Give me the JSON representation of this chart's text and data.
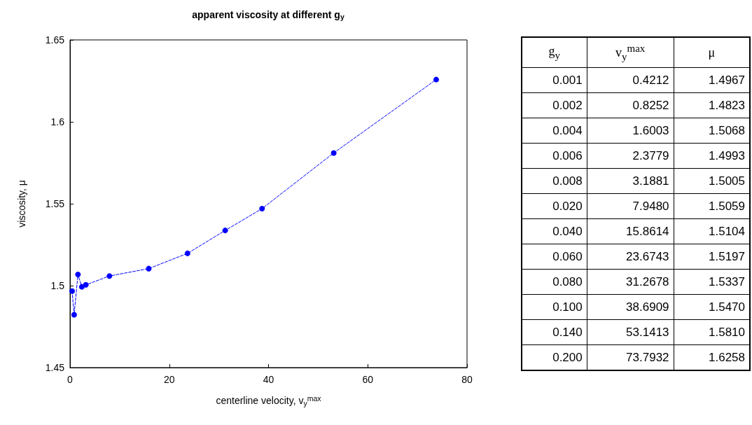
{
  "chart_data": [
    {
      "type": "line",
      "title": "apparent viscosity at different g$_{y}$",
      "xlabel": "centerline velocity, v$_{y}$$^{max}$",
      "ylabel": "viscosity, μ",
      "x": [
        0.4212,
        0.8252,
        1.6003,
        2.3779,
        3.1881,
        7.948,
        15.8614,
        23.6743,
        31.2678,
        38.6909,
        53.1413,
        73.7932
      ],
      "values": [
        1.4967,
        1.4823,
        1.5068,
        1.4993,
        1.5005,
        1.5059,
        1.5104,
        1.5197,
        1.5337,
        1.547,
        1.581,
        1.6258
      ],
      "color": "#0000ff",
      "marker": "circle",
      "line_style": "dashed",
      "grid": false,
      "xlim": [
        0,
        80
      ],
      "xticks": [
        0,
        20,
        40,
        60,
        80
      ],
      "ylim": [
        1.45,
        1.65
      ],
      "yticks": [
        1.45,
        1.5,
        1.55,
        1.6,
        1.65
      ]
    },
    {
      "type": "other",
      "categories": [
        "g$_{y}$",
        "v$_{y}$$^{max}$",
        "μ"
      ],
      "cell_labels": [
        [
          "0.001",
          "0.4212",
          "1.4967"
        ],
        [
          "0.002",
          "0.8252",
          "1.4823"
        ],
        [
          "0.004",
          "1.6003",
          "1.5068"
        ],
        [
          "0.006",
          "2.3779",
          "1.4993"
        ],
        [
          "0.008",
          "3.1881",
          "1.5005"
        ],
        [
          "0.020",
          "7.9480",
          "1.5059"
        ],
        [
          "0.040",
          "15.8614",
          "1.5104"
        ],
        [
          "0.060",
          "23.6743",
          "1.5197"
        ],
        [
          "0.080",
          "31.2678",
          "1.5337"
        ],
        [
          "0.100",
          "38.6909",
          "1.5470"
        ],
        [
          "0.140",
          "53.1413",
          "1.5810"
        ],
        [
          "0.200",
          "73.7932",
          "1.6258"
        ]
      ]
    }
  ]
}
